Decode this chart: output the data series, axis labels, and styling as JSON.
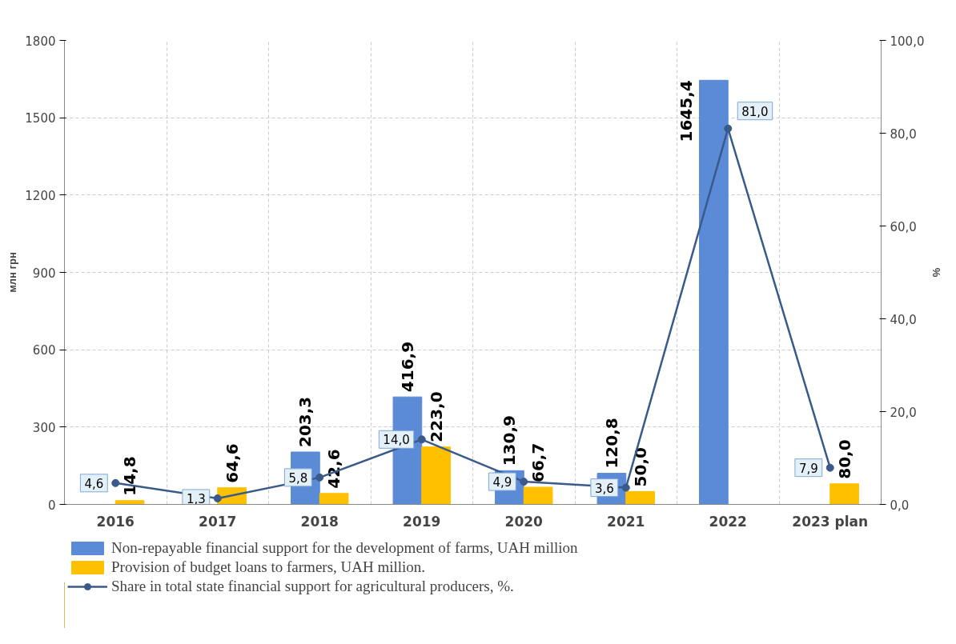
{
  "chart_data": {
    "type": "bar",
    "categories": [
      "2016",
      "2017",
      "2018",
      "2019",
      "2020",
      "2021",
      "2022",
      "2023 plan"
    ],
    "ylabel": "млн грн",
    "y2label": "%",
    "ylim": [
      0,
      1800
    ],
    "yticks": [
      0,
      300,
      600,
      900,
      1200,
      1500,
      1800
    ],
    "y2lim": [
      0,
      100
    ],
    "y2ticks": [
      {
        "value": 0,
        "label": "0,0"
      },
      {
        "value": 20,
        "label": "20,0"
      },
      {
        "value": 40,
        "label": "40,0"
      },
      {
        "value": 60,
        "label": "60,0"
      },
      {
        "value": 80,
        "label": "80,0"
      },
      {
        "value": 100,
        "label": "100,0"
      }
    ],
    "grid": true,
    "legend": "bottom",
    "series": [
      {
        "name": "Non-repayable financial support for the development of farms, UAH million",
        "color": "#5b8bd6",
        "values": [
          null,
          null,
          203.3,
          416.9,
          130.9,
          120.8,
          1645.4,
          null
        ],
        "value_labels": [
          null,
          null,
          "203,3",
          "416,9",
          "130,9",
          "120,8",
          "1645,4",
          null
        ]
      },
      {
        "name": "Provision of budget loans to farmers, UAH million.",
        "color": "#ffc000",
        "values": [
          14.8,
          64.6,
          42.6,
          223.0,
          66.7,
          50.0,
          null,
          80.0
        ],
        "value_labels": [
          "14,8",
          "64,6",
          "42,6",
          "223,0",
          "66,7",
          "50,0",
          null,
          "80,0"
        ]
      },
      {
        "name": "Share in total state financial support for agricultural producers, %.",
        "type": "line",
        "axis": "y2",
        "color": "#3a5a8a",
        "marker": "circle",
        "values": [
          4.6,
          1.3,
          5.8,
          14.0,
          4.9,
          3.6,
          81.0,
          7.9
        ],
        "value_labels": [
          "4,6",
          "1,3",
          "5,8",
          "14,0",
          "4,9",
          "3,6",
          "81,0",
          "7,9"
        ]
      }
    ]
  }
}
